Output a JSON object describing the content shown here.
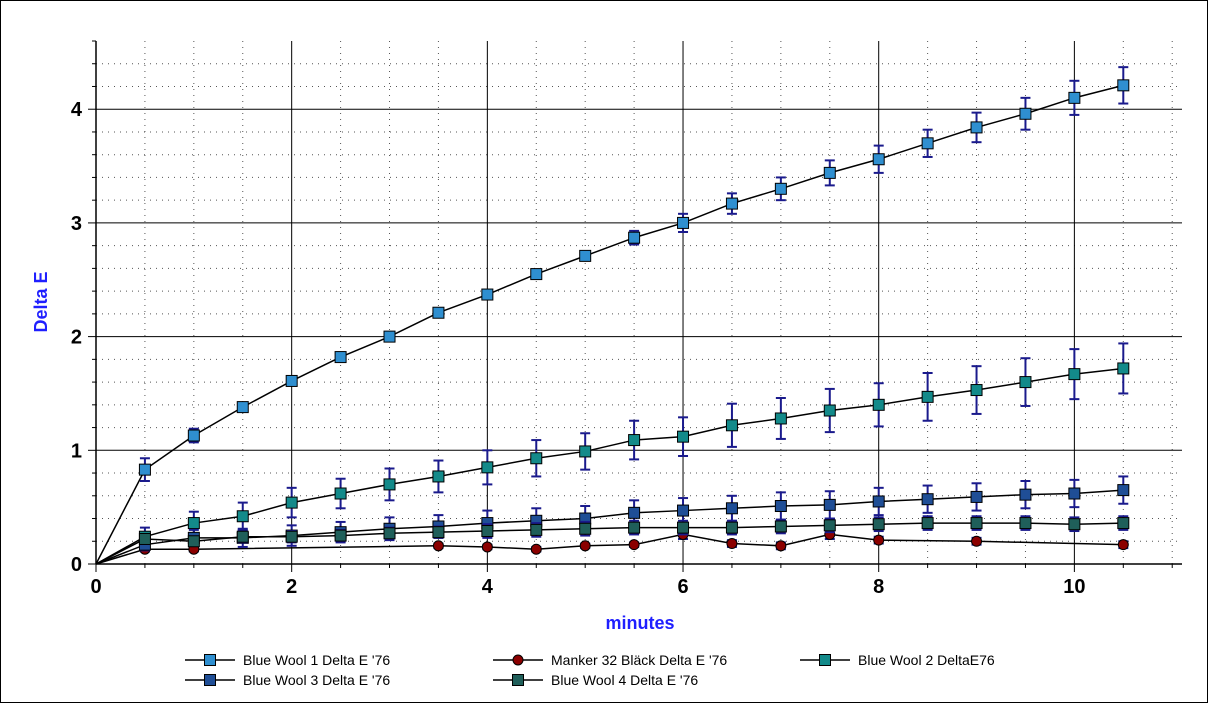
{
  "chart_data": {
    "type": "line",
    "title": "",
    "xlabel": "minutes",
    "ylabel": "Delta E",
    "xlim": [
      0,
      11.1
    ],
    "ylim": [
      0,
      4.6
    ],
    "x_ticks": [
      "0",
      "2",
      "4",
      "6",
      "8",
      "10"
    ],
    "y_ticks": [
      "0",
      "1",
      "2",
      "3",
      "4"
    ],
    "grid": true,
    "legend_position": "bottom",
    "series": [
      {
        "name": "Blue Wool 1 Delta E '76",
        "color": "#2f8fd0",
        "marker": "square",
        "x": [
          0,
          0.5,
          1,
          1.5,
          2,
          2.5,
          3,
          3.5,
          4,
          4.5,
          5,
          5.5,
          6,
          6.5,
          7,
          7.5,
          8,
          8.5,
          9,
          9.5,
          10,
          10.5
        ],
        "y": [
          0,
          0.83,
          1.13,
          1.38,
          1.61,
          1.82,
          2.0,
          2.21,
          2.37,
          2.55,
          2.71,
          2.87,
          3.0,
          3.17,
          3.3,
          3.44,
          3.56,
          3.7,
          3.84,
          3.96,
          4.1,
          4.21
        ],
        "err": [
          0,
          0.1,
          0.06,
          0.04,
          0.03,
          0.03,
          0.03,
          0.03,
          0.03,
          0.04,
          0.04,
          0.06,
          0.08,
          0.09,
          0.1,
          0.11,
          0.12,
          0.12,
          0.13,
          0.14,
          0.15,
          0.16
        ]
      },
      {
        "name": "Manker 32 Bläck Delta E '76",
        "color": "#8b0000",
        "marker": "circle",
        "x": [
          0,
          0.5,
          1,
          3.5,
          4,
          4.5,
          5,
          5.5,
          6,
          6.5,
          7,
          7.5,
          8,
          9,
          10.5
        ],
        "y": [
          0,
          0.13,
          0.13,
          0.16,
          0.15,
          0.13,
          0.16,
          0.17,
          0.26,
          0.18,
          0.16,
          0.26,
          0.21,
          0.2,
          0.17
        ],
        "err": [
          0,
          0.02,
          0.02,
          0.02,
          0.02,
          0.02,
          0.02,
          0.02,
          0.04,
          0.03,
          0.03,
          0.04,
          0.03,
          0.03,
          0.03
        ]
      },
      {
        "name": "Blue Wool 2 DeltaE76",
        "color": "#138a8a",
        "marker": "square",
        "x": [
          0,
          0.5,
          1,
          1.5,
          2,
          2.5,
          3,
          3.5,
          4,
          4.5,
          5,
          5.5,
          6,
          6.5,
          7,
          7.5,
          8,
          8.5,
          9,
          9.5,
          10,
          10.5
        ],
        "y": [
          0,
          0.24,
          0.36,
          0.42,
          0.54,
          0.62,
          0.7,
          0.77,
          0.85,
          0.93,
          0.99,
          1.09,
          1.12,
          1.22,
          1.28,
          1.35,
          1.4,
          1.47,
          1.53,
          1.6,
          1.67,
          1.72
        ],
        "err": [
          0,
          0.08,
          0.1,
          0.12,
          0.13,
          0.13,
          0.14,
          0.14,
          0.15,
          0.16,
          0.16,
          0.17,
          0.17,
          0.19,
          0.18,
          0.19,
          0.19,
          0.21,
          0.21,
          0.21,
          0.22,
          0.22
        ]
      },
      {
        "name": "Blue Wool 3 Delta E '76",
        "color": "#1f4e96",
        "marker": "square",
        "x": [
          0,
          0.5,
          1,
          1.5,
          2,
          2.5,
          3,
          3.5,
          4,
          4.5,
          5,
          5.5,
          6,
          6.5,
          7,
          7.5,
          8,
          8.5,
          9,
          9.5,
          10,
          10.5
        ],
        "y": [
          0,
          0.17,
          0.23,
          0.23,
          0.25,
          0.28,
          0.31,
          0.33,
          0.36,
          0.38,
          0.4,
          0.45,
          0.47,
          0.49,
          0.51,
          0.52,
          0.55,
          0.57,
          0.59,
          0.61,
          0.62,
          0.65
        ],
        "err": [
          0,
          0.05,
          0.07,
          0.08,
          0.09,
          0.09,
          0.1,
          0.1,
          0.11,
          0.11,
          0.11,
          0.11,
          0.11,
          0.11,
          0.12,
          0.12,
          0.12,
          0.12,
          0.12,
          0.12,
          0.12,
          0.12
        ]
      },
      {
        "name": "Blue Wool 4 Delta E '76",
        "color": "#1f5f5a",
        "marker": "square",
        "x": [
          0,
          0.5,
          1,
          1.5,
          2,
          2.5,
          3,
          3.5,
          4,
          4.5,
          5,
          5.5,
          6,
          6.5,
          7,
          7.5,
          8,
          8.5,
          9,
          9.5,
          10,
          10.5
        ],
        "y": [
          0,
          0.22,
          0.2,
          0.24,
          0.24,
          0.25,
          0.27,
          0.28,
          0.29,
          0.3,
          0.31,
          0.32,
          0.32,
          0.32,
          0.33,
          0.34,
          0.35,
          0.36,
          0.36,
          0.36,
          0.35,
          0.36
        ],
        "err": [
          0,
          0.04,
          0.04,
          0.05,
          0.05,
          0.05,
          0.05,
          0.05,
          0.06,
          0.06,
          0.06,
          0.06,
          0.06,
          0.06,
          0.06,
          0.06,
          0.06,
          0.06,
          0.06,
          0.06,
          0.06,
          0.06
        ]
      }
    ],
    "legend_rows": [
      [
        0,
        1,
        2
      ],
      [
        3,
        4
      ]
    ]
  }
}
